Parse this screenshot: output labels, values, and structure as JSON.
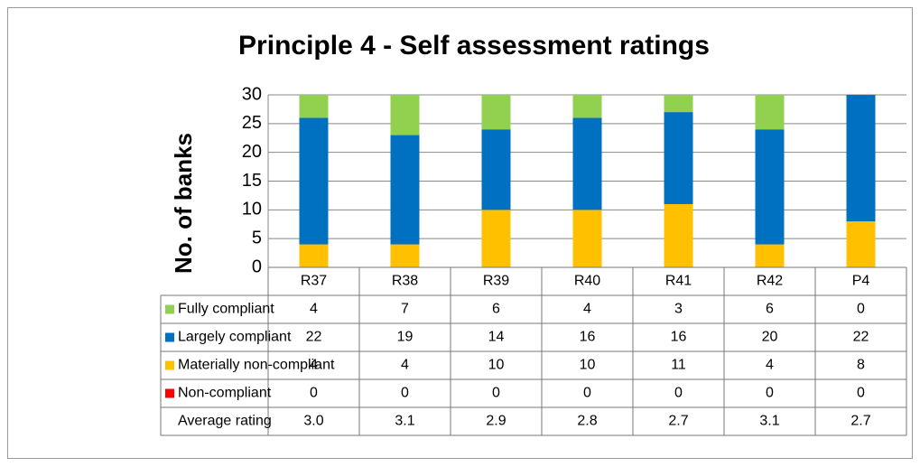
{
  "chart_data": {
    "type": "bar",
    "stacked": true,
    "title": "Principle 4 - Self assessment ratings",
    "y_label": "No. of banks",
    "categories": [
      "R37",
      "R38",
      "R39",
      "R40",
      "R41",
      "R42",
      "P4"
    ],
    "series": [
      {
        "name": "Fully compliant",
        "color": "#92d050",
        "values": [
          4,
          7,
          6,
          4,
          3,
          6,
          0
        ]
      },
      {
        "name": "Largely compliant",
        "color": "#0070c0",
        "values": [
          22,
          19,
          14,
          16,
          16,
          20,
          22
        ]
      },
      {
        "name": "Materially non-compliant",
        "color": "#ffc000",
        "values": [
          4,
          4,
          10,
          10,
          11,
          4,
          8
        ]
      },
      {
        "name": "Non-compliant",
        "color": "#ff0000",
        "values": [
          0,
          0,
          0,
          0,
          0,
          0,
          0
        ]
      }
    ],
    "average_rating": {
      "name": "Average rating",
      "values": [
        3.0,
        3.1,
        2.9,
        2.8,
        2.7,
        3.1,
        2.7
      ],
      "value_labels": [
        "3.0",
        "3.1",
        "2.9",
        "2.8",
        "2.7",
        "3.1",
        "2.7"
      ]
    },
    "ylim": [
      0,
      30
    ],
    "yticks": [
      0,
      5,
      10,
      15,
      20,
      25,
      30
    ],
    "grid": true
  }
}
